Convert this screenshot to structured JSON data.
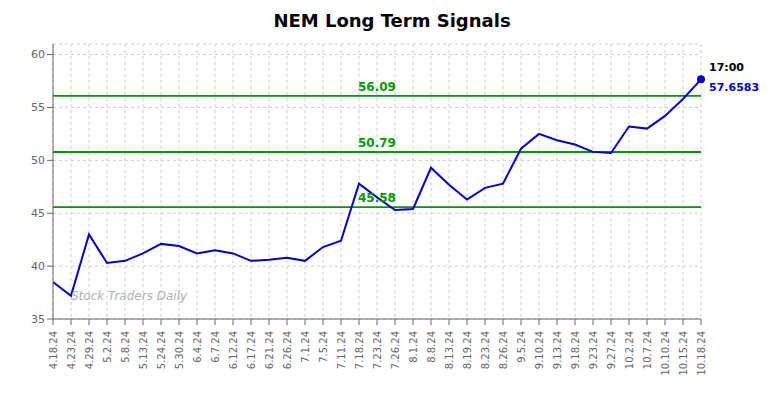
{
  "chart_data": {
    "type": "line",
    "title": "NEM Long Term Signals",
    "categories": [
      "4.18.24",
      "4.23.24",
      "4.29.24",
      "5.2.24",
      "5.8.24",
      "5.13.24",
      "5.24.24",
      "5.30.24",
      "6.4.24",
      "6.7.24",
      "6.12.24",
      "6.17.24",
      "6.21.24",
      "6.26.24",
      "7.1.24",
      "7.5.24",
      "7.11.24",
      "7.18.24",
      "7.23.24",
      "7.26.24",
      "8.1.24",
      "8.8.24",
      "8.13.24",
      "8.19.24",
      "8.23.24",
      "8.26.24",
      "9.5.24",
      "9.10.24",
      "9.13.24",
      "9.18.24",
      "9.23.24",
      "9.27.24",
      "10.2.24",
      "10.7.24",
      "10.10.24",
      "10.15.24",
      "10.18.24"
    ],
    "values": [
      38.5,
      37.2,
      43.0,
      40.3,
      40.5,
      41.2,
      42.1,
      41.9,
      41.2,
      41.5,
      41.2,
      40.5,
      40.6,
      40.8,
      40.5,
      41.8,
      42.4,
      47.8,
      46.5,
      45.3,
      45.4,
      49.3,
      47.7,
      46.3,
      47.4,
      47.8,
      51.1,
      52.5,
      51.9,
      51.5,
      50.8,
      50.7,
      53.2,
      53.0,
      54.2,
      55.8,
      57.6583
    ],
    "color": "#0000cc",
    "ylim": [
      35,
      61
    ],
    "yticks": [
      35,
      40,
      45,
      50,
      55,
      60
    ],
    "grid": true,
    "hlines": {
      "values": [
        45.58,
        50.79,
        56.09
      ],
      "color": "#009900"
    },
    "annotations": [
      {
        "text": "Stock Traders Daily",
        "color": "#b0b0b0"
      },
      {
        "text": "17:00",
        "x": "10.18.24",
        "color": "#000000"
      },
      {
        "text": "57.6583",
        "x": "10.18.24",
        "y": 57.6583,
        "color": "#0000cc"
      }
    ]
  }
}
